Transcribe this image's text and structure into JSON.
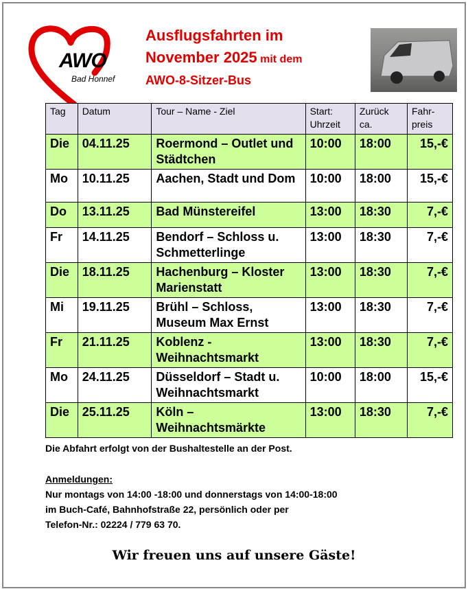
{
  "logo": {
    "name": "AWO",
    "sub": "Bad Honnef",
    "color": "#e00000"
  },
  "title": {
    "line1": "Ausflugsfahrten im",
    "line2a": "November 2025",
    "line2b": " mit dem",
    "line3": "AWO-8-Sitzer-Bus"
  },
  "table": {
    "headers": [
      "Tag",
      "Datum",
      "Tour – Name - Ziel",
      "Start: Uhrzeit",
      "Zurück ca.",
      "Fahr- preis"
    ],
    "rows": [
      [
        "Die",
        "04.11.25",
        "Roermond – Outlet und Städtchen",
        "10:00",
        "18:00",
        "15,-€"
      ],
      [
        "Mo",
        "10.11.25",
        "Aachen, Stadt und Dom",
        "10:00",
        "18:00",
        "15,-€"
      ],
      [
        "Do",
        "13.11.25",
        "Bad Münstereifel",
        "13:00",
        "18:30",
        "7,-€"
      ],
      [
        "Fr",
        "14.11.25",
        "Bendorf – Schloss u. Schmetterlinge",
        "13:00",
        "18:30",
        "7,-€"
      ],
      [
        "Die",
        "18.11.25",
        "Hachenburg – Kloster Marienstatt",
        "13:00",
        "18:30",
        "7,-€"
      ],
      [
        "Mi",
        "19.11.25",
        "Brühl – Schloss, Museum Max Ernst",
        "13:00",
        "18:30",
        "7,-€"
      ],
      [
        "Fr",
        "21.11.25",
        "Koblenz - Weihnachtsmarkt",
        "13:00",
        "18:30",
        "7,-€"
      ],
      [
        "Mo",
        "24.11.25",
        "Düsseldorf – Stadt u. Weihnachtsmarkt",
        "10:00",
        "18:00",
        "15,-€"
      ],
      [
        "Die",
        "25.11.25",
        "Köln – Weihnachtsmärkte",
        "13:00",
        "18:30",
        "7,-€"
      ]
    ]
  },
  "notes": {
    "departure": "Die Abfahrt erfolgt von der Bushaltestelle an der Post.",
    "reg_heading": "Anmeldungen:",
    "reg_line1": "Nur montags von 14:00 -18:00 und donnerstags von 14:00-18:00",
    "reg_line2": "im Buch-Café, Bahnhofstraße 22, persönlich oder per",
    "reg_line3": "Telefon-Nr.: 02224 / 779 63 70."
  },
  "closing": "Wir freuen uns auf unsere Gäste!"
}
